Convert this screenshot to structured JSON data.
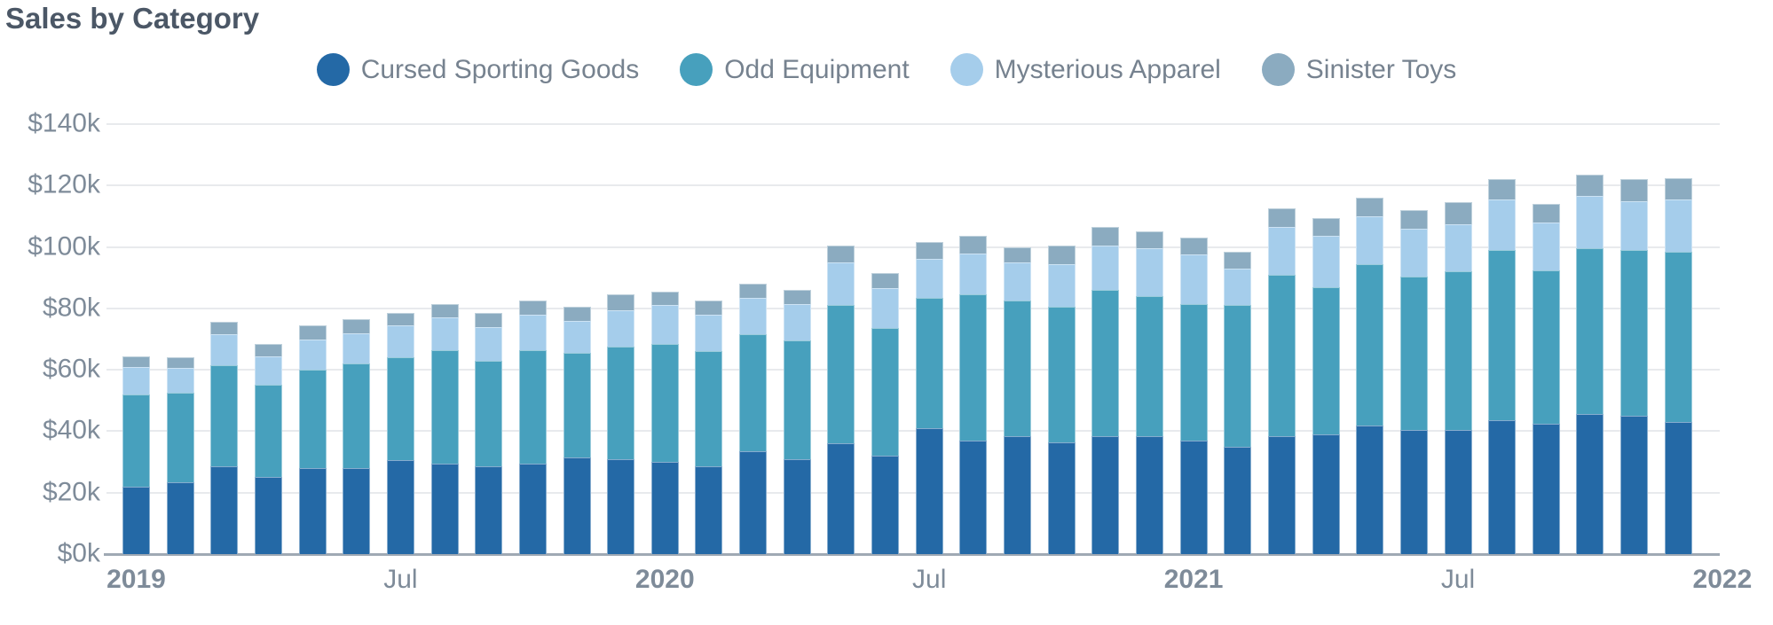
{
  "title": "Sales by Category",
  "legend": [
    {
      "label": "Cursed Sporting Goods",
      "color": "#2469A6"
    },
    {
      "label": "Odd Equipment",
      "color": "#47A0BD"
    },
    {
      "label": "Mysterious Apparel",
      "color": "#A5CDEB"
    },
    {
      "label": "Sinister Toys",
      "color": "#8BABC0"
    }
  ],
  "colors": {
    "background": "#ffffff",
    "title_text": "#4B5766",
    "axis_text": "#7E8B99",
    "legend_text": "#76828F",
    "gridline": "#E8EAED",
    "axis_line": "#9FA9B4"
  },
  "chart_data": {
    "type": "bar",
    "stacked": true,
    "title": "Sales by Category",
    "unit": "thousand USD",
    "ylim": [
      0,
      140
    ],
    "grid": true,
    "legend_position": "top-center",
    "y_ticks": [
      "$140k",
      "$120k",
      "$100k",
      "$80k",
      "$60k",
      "$40k",
      "$20k",
      "$0k"
    ],
    "x": [
      "2019-01",
      "2019-02",
      "2019-03",
      "2019-04",
      "2019-05",
      "2019-06",
      "2019-07",
      "2019-08",
      "2019-09",
      "2019-10",
      "2019-11",
      "2019-12",
      "2020-01",
      "2020-02",
      "2020-03",
      "2020-04",
      "2020-05",
      "2020-06",
      "2020-07",
      "2020-08",
      "2020-09",
      "2020-10",
      "2020-11",
      "2020-12",
      "2021-01",
      "2021-02",
      "2021-03",
      "2021-04",
      "2021-05",
      "2021-06",
      "2021-07",
      "2021-08",
      "2021-09",
      "2021-10",
      "2021-11",
      "2021-12"
    ],
    "x_axis_ticks": [
      {
        "label": "2019",
        "month_index": 0,
        "bold": true
      },
      {
        "label": "Jul",
        "month_index": 6,
        "bold": false
      },
      {
        "label": "2020",
        "month_index": 12,
        "bold": true
      },
      {
        "label": "Jul",
        "month_index": 18,
        "bold": false
      },
      {
        "label": "2021",
        "month_index": 24,
        "bold": true
      },
      {
        "label": "Jul",
        "month_index": 30,
        "bold": false
      },
      {
        "label": "2022",
        "month_index": 36,
        "bold": true
      }
    ],
    "series": [
      {
        "name": "Cursed Sporting Goods",
        "color": "#2469A6",
        "values": [
          22,
          23.5,
          28.5,
          25,
          28,
          28,
          30.5,
          29.5,
          28.5,
          29.5,
          31.5,
          31,
          30,
          28.5,
          33.5,
          31,
          36,
          32,
          41,
          37,
          38.5,
          36.5,
          38.5,
          38.5,
          37,
          35,
          38.5,
          39,
          42,
          40.5,
          40.5,
          43.5,
          42.5,
          45.5,
          45,
          43
        ]
      },
      {
        "name": "Odd Equipment",
        "color": "#47A0BD",
        "values": [
          30,
          29,
          33,
          30,
          32,
          34,
          33.5,
          37,
          34.5,
          37,
          34,
          36.5,
          38.5,
          37.5,
          38,
          38.5,
          45,
          41.5,
          42.5,
          47.5,
          44,
          44,
          47.5,
          45.5,
          44.5,
          46,
          52.5,
          48,
          52.5,
          50,
          51.5,
          55.5,
          50,
          54,
          54,
          55.5
        ]
      },
      {
        "name": "Mysterious Apparel",
        "color": "#A5CDEB",
        "values": [
          9,
          8,
          10,
          9.5,
          10,
          10,
          10.5,
          10.5,
          11,
          11.5,
          10.5,
          12,
          12.5,
          12,
          12,
          12,
          14,
          13,
          12.5,
          13.5,
          12.5,
          14,
          14.5,
          15.5,
          16,
          12,
          15.5,
          16.5,
          15.5,
          15.5,
          15.5,
          16.5,
          15.5,
          17,
          16,
          17
        ]
      },
      {
        "name": "Sinister Toys",
        "color": "#8BABC0",
        "values": [
          3.5,
          3.5,
          4,
          4,
          4.5,
          4.5,
          4,
          4.5,
          4.5,
          4.5,
          4.5,
          5,
          4.5,
          4.5,
          4.5,
          4.5,
          5.5,
          5,
          5.5,
          5.5,
          5,
          6,
          6,
          5.5,
          5.5,
          5.5,
          6,
          6,
          6,
          6,
          7,
          6.5,
          6,
          7,
          7,
          7
        ]
      }
    ]
  }
}
